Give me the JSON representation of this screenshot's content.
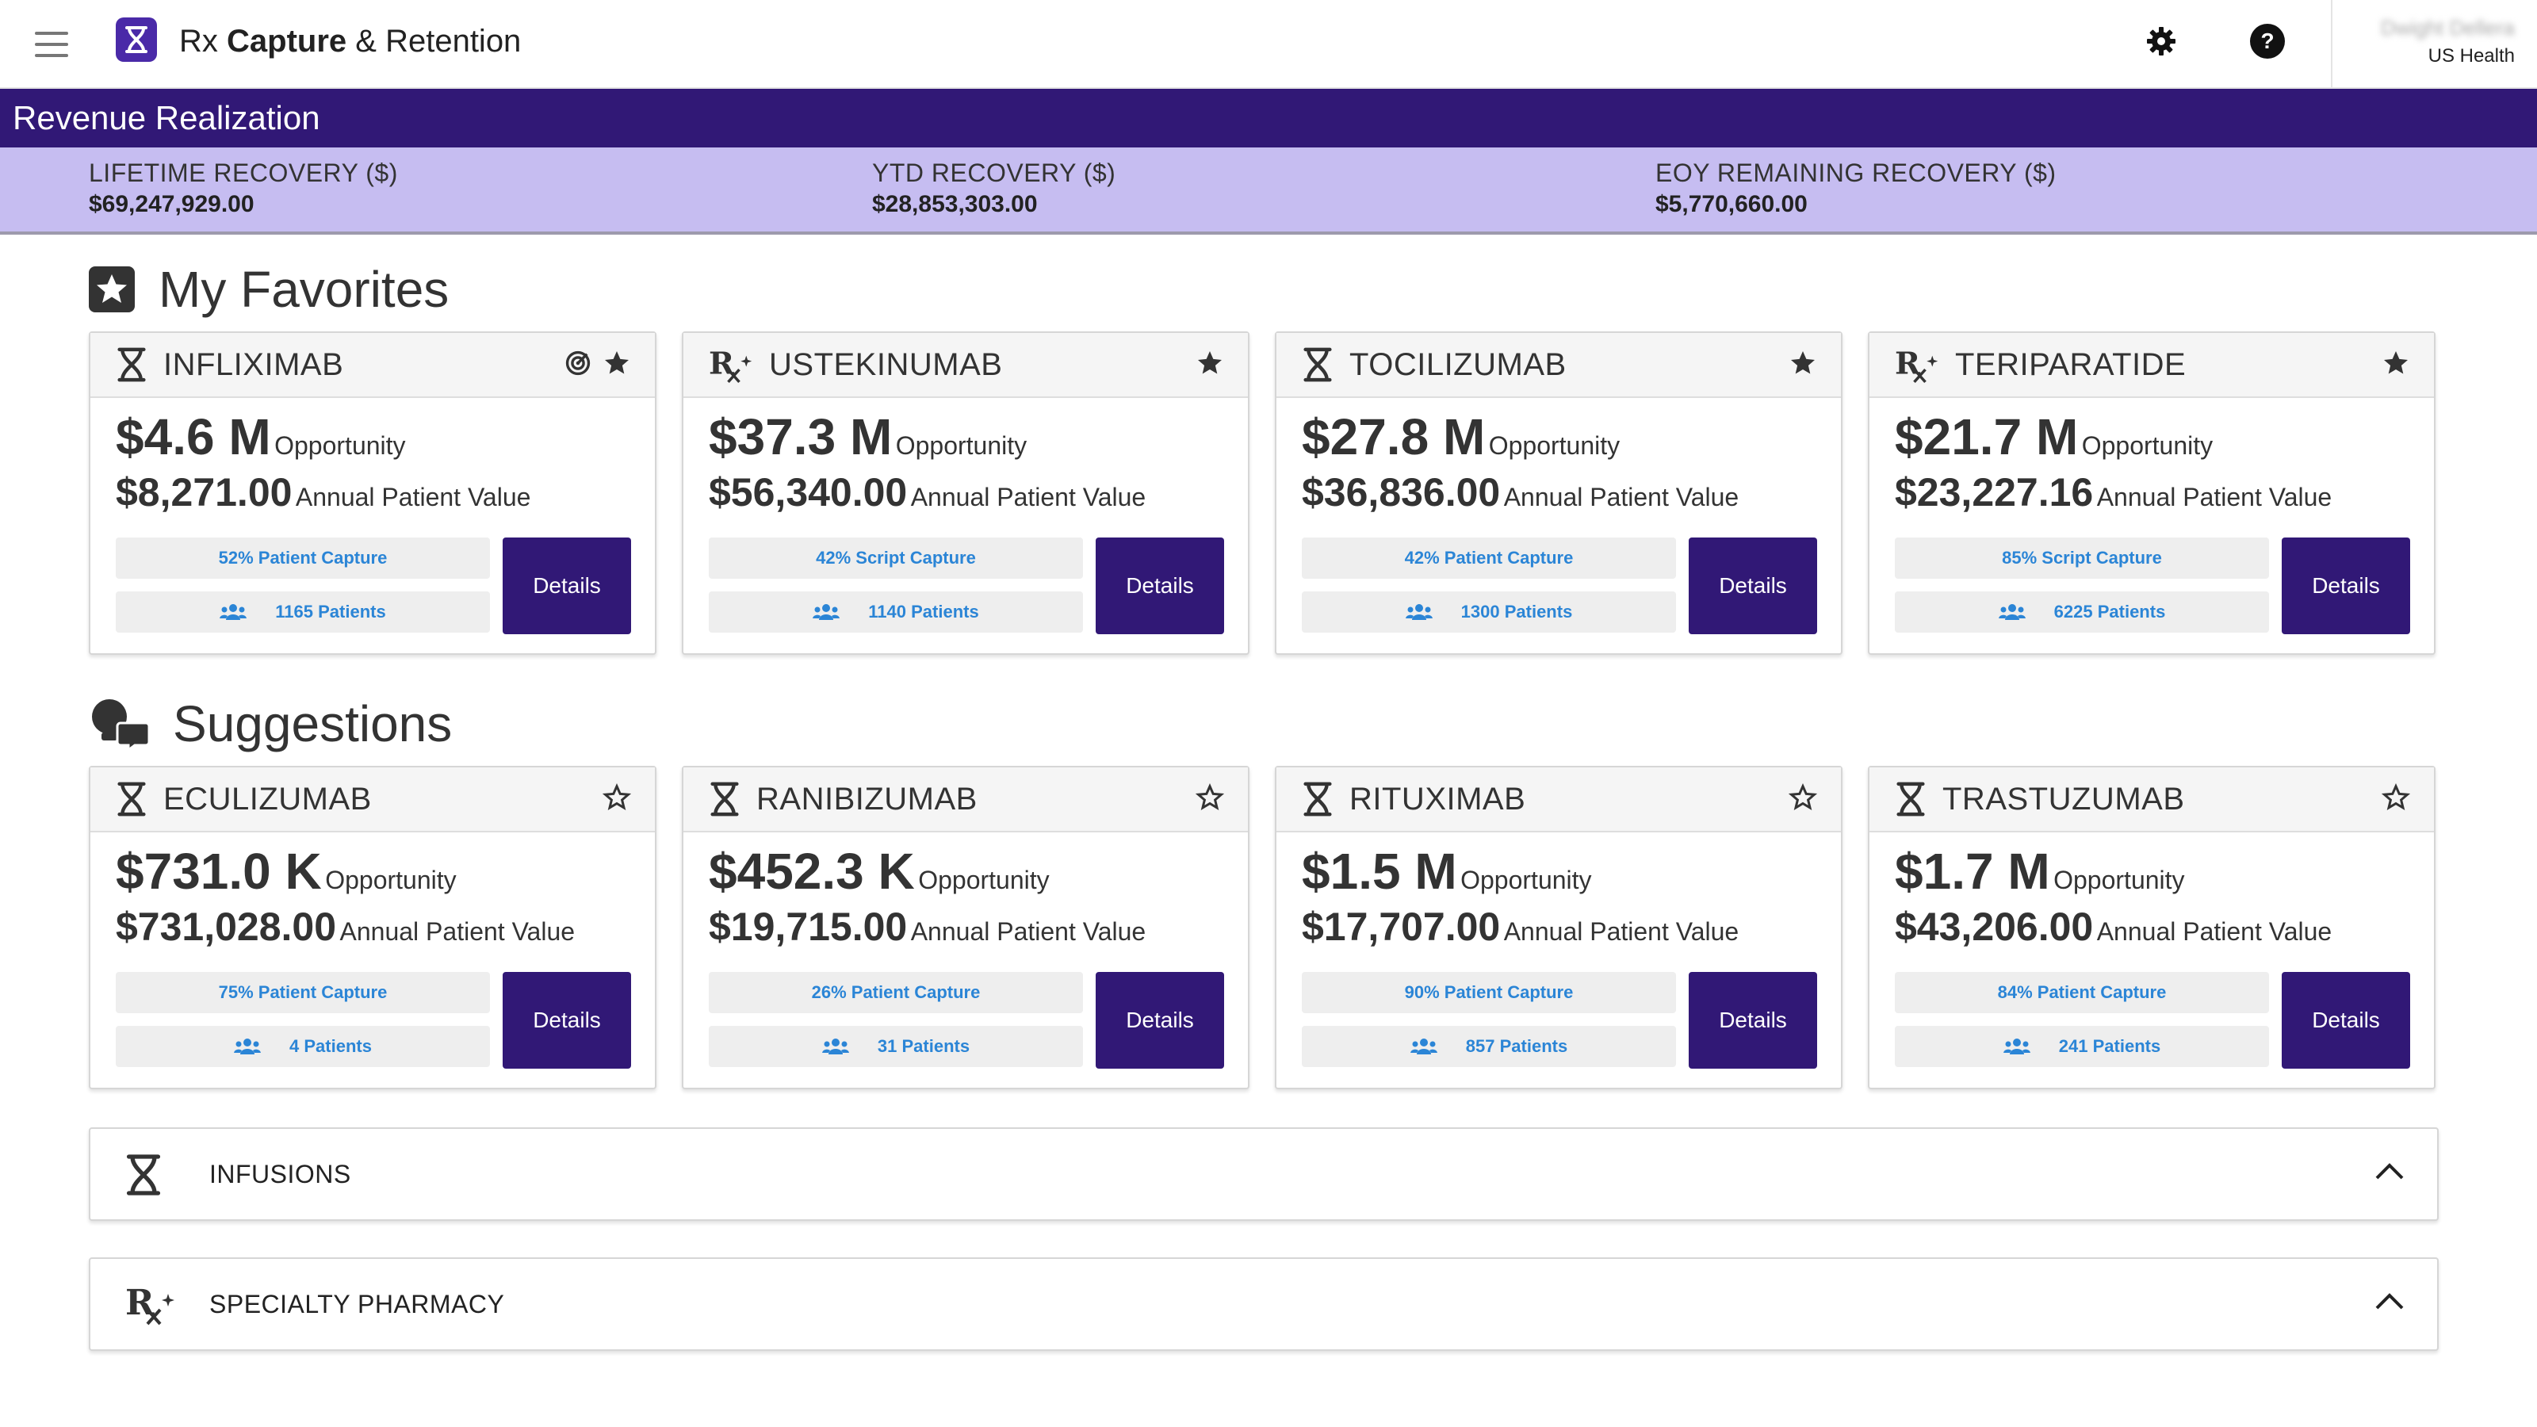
{
  "app": {
    "title_part1": "Rx",
    "title_part2": "Capture",
    "title_part3": "& Retention",
    "logo_icon": "hourglass-icon"
  },
  "header": {
    "settings_icon": "gear-icon",
    "help_icon": "help-circle-icon",
    "user_name": "Dwight Dellera",
    "user_org": "US Health"
  },
  "revenue": {
    "title": "Revenue Realization",
    "metrics": [
      {
        "label": "LIFETIME RECOVERY ($)",
        "value": "$69,247,929.00"
      },
      {
        "label": "YTD RECOVERY ($)",
        "value": "$28,853,303.00"
      },
      {
        "label": "EOY REMAINING RECOVERY ($)",
        "value": "$5,770,660.00"
      }
    ]
  },
  "favorites": {
    "title": "My Favorites",
    "cards": [
      {
        "drug": "INFLIXIMAB",
        "type": "infusion",
        "opportunity": "$4.6 M",
        "opportunity_label": "Opportunity",
        "apv": "$8,271.00",
        "apv_label": "Annual Patient Value",
        "capture": "52% Patient Capture",
        "patients": "1165 Patients",
        "details": "Details",
        "favorited": true,
        "targeted": true
      },
      {
        "drug": "USTEKINUMAB",
        "type": "specialty",
        "opportunity": "$37.3 M",
        "opportunity_label": "Opportunity",
        "apv": "$56,340.00",
        "apv_label": "Annual Patient Value",
        "capture": "42% Script Capture",
        "patients": "1140 Patients",
        "details": "Details",
        "favorited": true,
        "targeted": false
      },
      {
        "drug": "TOCILIZUMAB",
        "type": "infusion",
        "opportunity": "$27.8 M",
        "opportunity_label": "Opportunity",
        "apv": "$36,836.00",
        "apv_label": "Annual Patient Value",
        "capture": "42% Patient Capture",
        "patients": "1300 Patients",
        "details": "Details",
        "favorited": true,
        "targeted": false
      },
      {
        "drug": "TERIPARATIDE",
        "type": "specialty",
        "opportunity": "$21.7 M",
        "opportunity_label": "Opportunity",
        "apv": "$23,227.16",
        "apv_label": "Annual Patient Value",
        "capture": "85% Script Capture",
        "patients": "6225 Patients",
        "details": "Details",
        "favorited": true,
        "targeted": false
      }
    ]
  },
  "suggestions": {
    "title": "Suggestions",
    "cards": [
      {
        "drug": "ECULIZUMAB",
        "type": "infusion",
        "opportunity": "$731.0 K",
        "opportunity_label": "Opportunity",
        "apv": "$731,028.00",
        "apv_label": "Annual Patient Value",
        "capture": "75% Patient Capture",
        "patients": "4 Patients",
        "details": "Details",
        "favorited": false,
        "targeted": false
      },
      {
        "drug": "RANIBIZUMAB",
        "type": "infusion",
        "opportunity": "$452.3 K",
        "opportunity_label": "Opportunity",
        "apv": "$19,715.00",
        "apv_label": "Annual Patient Value",
        "capture": "26% Patient Capture",
        "patients": "31 Patients",
        "details": "Details",
        "favorited": false,
        "targeted": false
      },
      {
        "drug": "RITUXIMAB",
        "type": "infusion",
        "opportunity": "$1.5 M",
        "opportunity_label": "Opportunity",
        "apv": "$17,707.00",
        "apv_label": "Annual Patient Value",
        "capture": "90% Patient Capture",
        "patients": "857 Patients",
        "details": "Details",
        "favorited": false,
        "targeted": false
      },
      {
        "drug": "TRASTUZUMAB",
        "type": "infusion",
        "opportunity": "$1.7 M",
        "opportunity_label": "Opportunity",
        "apv": "$43,206.00",
        "apv_label": "Annual Patient Value",
        "capture": "84% Patient Capture",
        "patients": "241 Patients",
        "details": "Details",
        "favorited": false,
        "targeted": false
      }
    ]
  },
  "accordions": [
    {
      "label": "INFUSIONS",
      "icon": "hourglass-icon",
      "expanded": true
    },
    {
      "label": "SPECIALTY PHARMACY",
      "icon": "rx-icon",
      "expanded": true
    }
  ],
  "colors": {
    "brand_dark": "#311876",
    "brand_light": "#c6bdf1",
    "link_blue": "#2b85d6"
  }
}
